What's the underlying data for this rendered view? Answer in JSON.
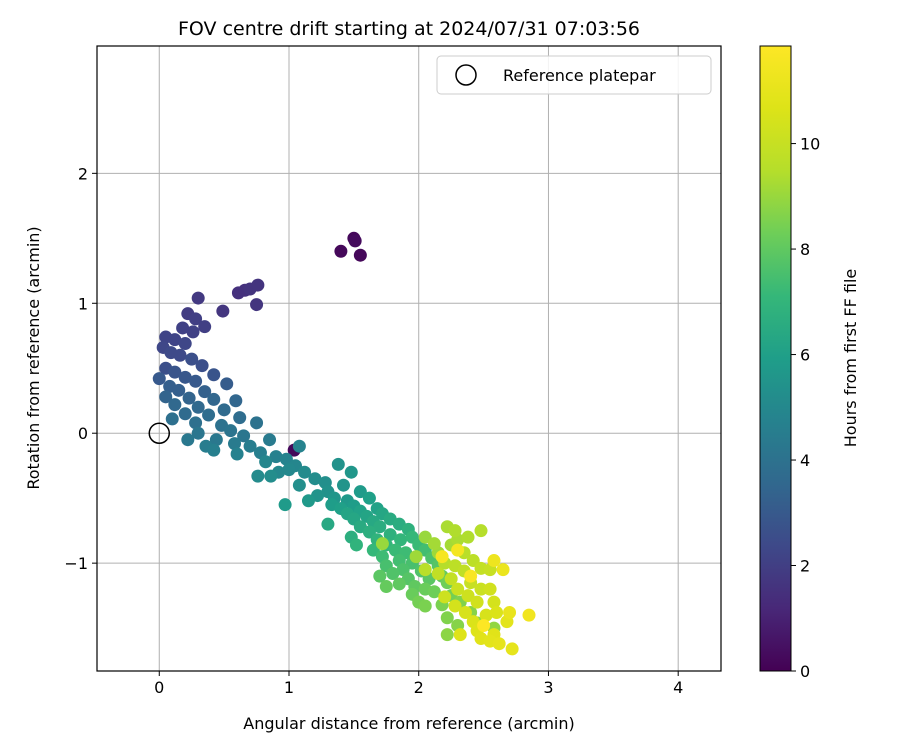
{
  "chart_data": {
    "type": "scatter",
    "title": "FOV centre drift starting at 2024/07/31 07:03:56",
    "xlabel": "Angular distance from reference (arcmin)",
    "ylabel": "Rotation from reference (arcmin)",
    "xlim": [
      -0.48,
      4.33
    ],
    "ylim": [
      -1.83,
      2.98
    ],
    "xticks": [
      0,
      1,
      2,
      3,
      4
    ],
    "yticks": [
      -1,
      0,
      1,
      2
    ],
    "grid": true,
    "legend": {
      "position": "top-right",
      "entries": [
        {
          "label": "Reference platepar",
          "marker": "hollow-circle"
        }
      ]
    },
    "reference_point": {
      "x": 0,
      "y": 0
    },
    "colorbar": {
      "label": "Hours from first FF file",
      "colormap": "viridis",
      "range": [
        0,
        11.85
      ],
      "ticks": [
        0,
        2,
        4,
        6,
        8,
        10
      ]
    },
    "series": [
      {
        "color_by": "hours",
        "points": [
          [
            1.4,
            1.4,
            0.2
          ],
          [
            1.5,
            1.5,
            0.2
          ],
          [
            1.51,
            1.48,
            0.3
          ],
          [
            1.55,
            1.37,
            0.2
          ],
          [
            1.04,
            -0.13,
            0.2
          ],
          [
            0.61,
            1.08,
            1.5
          ],
          [
            0.66,
            1.1,
            1.5
          ],
          [
            0.7,
            1.11,
            1.6
          ],
          [
            0.76,
            1.14,
            1.6
          ],
          [
            0.75,
            0.99,
            1.7
          ],
          [
            0.49,
            0.94,
            1.7
          ],
          [
            0.3,
            1.04,
            1.8
          ],
          [
            0.22,
            0.92,
            1.9
          ],
          [
            0.28,
            0.88,
            2.0
          ],
          [
            0.35,
            0.82,
            2.0
          ],
          [
            0.18,
            0.81,
            2.1
          ],
          [
            0.26,
            0.78,
            2.1
          ],
          [
            0.05,
            0.74,
            2.2
          ],
          [
            0.12,
            0.72,
            2.2
          ],
          [
            0.2,
            0.69,
            2.3
          ],
          [
            0.03,
            0.66,
            2.3
          ],
          [
            0.09,
            0.62,
            2.4
          ],
          [
            0.16,
            0.6,
            2.4
          ],
          [
            0.25,
            0.57,
            2.6
          ],
          [
            0.33,
            0.52,
            2.6
          ],
          [
            0.05,
            0.5,
            2.6
          ],
          [
            0.12,
            0.47,
            2.8
          ],
          [
            0.42,
            0.45,
            2.8
          ],
          [
            0.2,
            0.43,
            2.9
          ],
          [
            0.0,
            0.42,
            3.0
          ],
          [
            0.28,
            0.4,
            3.0
          ],
          [
            0.52,
            0.38,
            3.1
          ],
          [
            0.08,
            0.36,
            3.2
          ],
          [
            0.15,
            0.33,
            3.2
          ],
          [
            0.35,
            0.32,
            3.3
          ],
          [
            0.05,
            0.28,
            3.4
          ],
          [
            0.23,
            0.27,
            3.4
          ],
          [
            0.42,
            0.26,
            3.5
          ],
          [
            0.59,
            0.25,
            3.5
          ],
          [
            0.12,
            0.22,
            3.6
          ],
          [
            0.3,
            0.2,
            3.6
          ],
          [
            0.5,
            0.18,
            3.7
          ],
          [
            0.2,
            0.15,
            3.7
          ],
          [
            0.38,
            0.14,
            3.8
          ],
          [
            0.62,
            0.12,
            3.8
          ],
          [
            0.1,
            0.11,
            3.9
          ],
          [
            0.28,
            0.08,
            3.9
          ],
          [
            0.48,
            0.06,
            4.0
          ],
          [
            0.75,
            0.08,
            4.0
          ],
          [
            0.55,
            0.02,
            4.1
          ],
          [
            0.3,
            0.0,
            4.2
          ],
          [
            0.65,
            -0.02,
            4.2
          ],
          [
            0.44,
            -0.05,
            4.3
          ],
          [
            0.22,
            -0.05,
            4.3
          ],
          [
            0.85,
            -0.05,
            4.4
          ],
          [
            0.58,
            -0.08,
            4.4
          ],
          [
            0.36,
            -0.1,
            4.5
          ],
          [
            0.7,
            -0.1,
            4.5
          ],
          [
            0.42,
            -0.13,
            4.6
          ],
          [
            0.78,
            -0.15,
            4.6
          ],
          [
            0.6,
            -0.16,
            4.7
          ],
          [
            0.9,
            -0.18,
            4.7
          ],
          [
            0.98,
            -0.2,
            4.8
          ],
          [
            1.08,
            -0.1,
            4.8
          ],
          [
            0.82,
            -0.22,
            4.9
          ],
          [
            1.05,
            -0.25,
            4.9
          ],
          [
            1.0,
            -0.28,
            5.0
          ],
          [
            0.92,
            -0.3,
            5.0
          ],
          [
            1.12,
            -0.3,
            5.1
          ],
          [
            0.76,
            -0.33,
            5.1
          ],
          [
            0.86,
            -0.33,
            5.2
          ],
          [
            1.2,
            -0.35,
            5.2
          ],
          [
            1.28,
            -0.38,
            5.3
          ],
          [
            1.08,
            -0.4,
            5.3
          ],
          [
            1.38,
            -0.24,
            5.4
          ],
          [
            1.3,
            -0.45,
            5.4
          ],
          [
            1.42,
            -0.4,
            5.5
          ],
          [
            1.22,
            -0.48,
            5.5
          ],
          [
            1.48,
            -0.3,
            5.6
          ],
          [
            1.35,
            -0.5,
            5.6
          ],
          [
            1.15,
            -0.52,
            5.7
          ],
          [
            1.45,
            -0.52,
            5.7
          ],
          [
            1.55,
            -0.45,
            5.8
          ],
          [
            0.97,
            -0.55,
            5.8
          ],
          [
            1.33,
            -0.55,
            5.9
          ],
          [
            1.5,
            -0.56,
            5.9
          ],
          [
            1.62,
            -0.5,
            6.0
          ],
          [
            1.4,
            -0.58,
            6.0
          ],
          [
            1.55,
            -0.6,
            6.1
          ],
          [
            1.68,
            -0.58,
            6.1
          ],
          [
            1.45,
            -0.62,
            6.2
          ],
          [
            1.6,
            -0.64,
            6.2
          ],
          [
            1.72,
            -0.62,
            6.3
          ],
          [
            1.5,
            -0.66,
            6.3
          ],
          [
            1.65,
            -0.68,
            6.4
          ],
          [
            1.3,
            -0.7,
            6.4
          ],
          [
            1.78,
            -0.66,
            6.5
          ],
          [
            1.55,
            -0.72,
            6.5
          ],
          [
            1.7,
            -0.72,
            6.6
          ],
          [
            1.85,
            -0.7,
            6.6
          ],
          [
            1.62,
            -0.76,
            6.7
          ],
          [
            1.48,
            -0.8,
            6.7
          ],
          [
            1.78,
            -0.78,
            6.8
          ],
          [
            1.92,
            -0.74,
            6.8
          ],
          [
            1.68,
            -0.82,
            6.9
          ],
          [
            1.52,
            -0.86,
            6.9
          ],
          [
            1.86,
            -0.82,
            7.0
          ],
          [
            1.75,
            -0.86,
            7.0
          ],
          [
            1.95,
            -0.8,
            7.1
          ],
          [
            1.65,
            -0.9,
            7.1
          ],
          [
            1.82,
            -0.9,
            7.2
          ],
          [
            2.0,
            -0.86,
            7.2
          ],
          [
            1.9,
            -0.92,
            7.3
          ],
          [
            1.72,
            -0.95,
            7.3
          ],
          [
            2.05,
            -0.9,
            7.4
          ],
          [
            1.85,
            -0.98,
            7.4
          ],
          [
            1.95,
            -1.0,
            7.5
          ],
          [
            1.75,
            -1.02,
            7.5
          ],
          [
            2.1,
            -0.96,
            7.6
          ],
          [
            1.88,
            -1.05,
            7.6
          ],
          [
            2.02,
            -1.06,
            7.7
          ],
          [
            1.8,
            -1.08,
            7.7
          ],
          [
            2.15,
            -1.02,
            7.8
          ],
          [
            1.92,
            -1.12,
            7.8
          ],
          [
            1.7,
            -1.1,
            7.9
          ],
          [
            2.08,
            -1.12,
            7.9
          ],
          [
            1.97,
            -1.18,
            8.0
          ],
          [
            1.85,
            -1.16,
            8.0
          ],
          [
            2.18,
            -1.1,
            8.1
          ],
          [
            1.75,
            -1.18,
            8.1
          ],
          [
            2.05,
            -1.2,
            8.2
          ],
          [
            1.95,
            -1.24,
            8.2
          ],
          [
            2.22,
            -1.15,
            8.3
          ],
          [
            2.12,
            -1.22,
            8.3
          ],
          [
            2.0,
            -1.3,
            8.4
          ],
          [
            2.25,
            -1.25,
            8.4
          ],
          [
            2.18,
            -1.32,
            8.5
          ],
          [
            2.05,
            -1.33,
            8.5
          ],
          [
            2.32,
            -1.3,
            8.6
          ],
          [
            2.22,
            -1.42,
            8.6
          ],
          [
            2.4,
            -1.38,
            8.7
          ],
          [
            2.3,
            -1.48,
            8.7
          ],
          [
            2.45,
            -1.46,
            8.8
          ],
          [
            2.22,
            -1.55,
            8.8
          ],
          [
            2.58,
            -1.5,
            8.9
          ],
          [
            1.72,
            -0.85,
            9.0
          ],
          [
            2.05,
            -0.8,
            9.0
          ],
          [
            1.98,
            -0.95,
            9.1
          ],
          [
            2.15,
            -0.92,
            9.1
          ],
          [
            2.25,
            -0.86,
            9.2
          ],
          [
            2.12,
            -0.85,
            9.2
          ],
          [
            2.3,
            -0.82,
            9.3
          ],
          [
            2.22,
            -0.72,
            9.3
          ],
          [
            2.28,
            -0.75,
            9.4
          ],
          [
            2.38,
            -0.8,
            9.4
          ],
          [
            2.48,
            -0.75,
            9.5
          ],
          [
            2.2,
            -1.0,
            9.5
          ],
          [
            2.35,
            -0.92,
            9.6
          ],
          [
            2.05,
            -1.05,
            9.6
          ],
          [
            2.28,
            -1.02,
            9.7
          ],
          [
            2.42,
            -0.98,
            9.7
          ],
          [
            2.15,
            -1.08,
            9.8
          ],
          [
            2.35,
            -1.06,
            9.8
          ],
          [
            2.48,
            -1.04,
            9.9
          ],
          [
            2.25,
            -1.12,
            9.9
          ],
          [
            2.4,
            -1.15,
            10.0
          ],
          [
            2.55,
            -1.05,
            10.0
          ],
          [
            2.3,
            -1.2,
            10.1
          ],
          [
            2.48,
            -1.2,
            10.1
          ],
          [
            2.2,
            -1.26,
            10.2
          ],
          [
            2.38,
            -1.25,
            10.2
          ],
          [
            2.55,
            -1.2,
            10.3
          ],
          [
            2.45,
            -1.3,
            10.3
          ],
          [
            2.28,
            -1.33,
            10.4
          ],
          [
            2.58,
            -1.3,
            10.4
          ],
          [
            2.36,
            -1.38,
            10.5
          ],
          [
            2.52,
            -1.4,
            10.5
          ],
          [
            2.42,
            -1.45,
            10.6
          ],
          [
            2.6,
            -1.38,
            10.6
          ],
          [
            2.45,
            -1.52,
            10.7
          ],
          [
            2.32,
            -1.55,
            10.7
          ],
          [
            2.58,
            -1.55,
            10.8
          ],
          [
            2.48,
            -1.58,
            10.8
          ],
          [
            2.68,
            -1.45,
            10.9
          ],
          [
            2.55,
            -1.6,
            10.9
          ],
          [
            2.62,
            -1.62,
            11.0
          ],
          [
            2.72,
            -1.66,
            11.0
          ],
          [
            2.7,
            -1.38,
            11.1
          ],
          [
            2.65,
            -1.05,
            11.2
          ],
          [
            2.58,
            -0.98,
            11.3
          ],
          [
            2.85,
            -1.4,
            11.4
          ],
          [
            2.3,
            -0.9,
            11.5
          ],
          [
            2.18,
            -0.95,
            11.6
          ],
          [
            2.4,
            -1.1,
            11.7
          ],
          [
            2.5,
            -1.48,
            11.8
          ]
        ]
      }
    ]
  }
}
